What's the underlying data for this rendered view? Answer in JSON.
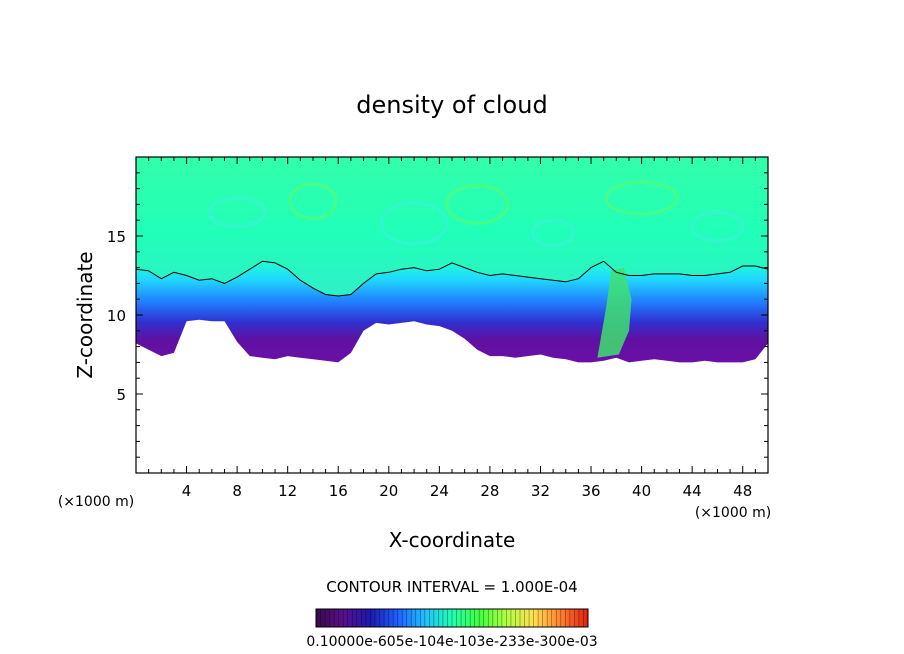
{
  "chart_data": {
    "type": "heatmap",
    "title": "density of cloud",
    "xlabel": "X-coordinate",
    "ylabel": "Z-coordinate",
    "x_unit": "(×1000 m)",
    "xlim": [
      0,
      50
    ],
    "ylim": [
      0,
      20
    ],
    "x_ticks": [
      "4",
      "8",
      "12",
      "16",
      "20",
      "24",
      "28",
      "32",
      "36",
      "40",
      "44",
      "48"
    ],
    "y_ticks": [
      "5",
      "10",
      "15"
    ],
    "contour_interval_text": "CONTOUR INTERVAL = 1.000E-04",
    "colorbar_text": "0.10000e-605e-104e-103e-233e-300e-03",
    "colormap": [
      "#3a0a4a",
      "#5a0f8a",
      "#1a1ab0",
      "#2060ff",
      "#20c0ff",
      "#20ffb0",
      "#40ff40",
      "#b0ff40",
      "#ffe050",
      "#ff8030",
      "#e02010"
    ],
    "cloud_top_contour": [
      [
        0,
        12.9
      ],
      [
        1,
        12.8
      ],
      [
        2,
        12.3
      ],
      [
        3,
        12.7
      ],
      [
        4,
        12.5
      ],
      [
        5,
        12.2
      ],
      [
        6,
        12.3
      ],
      [
        7,
        12.0
      ],
      [
        8,
        12.4
      ],
      [
        9,
        12.9
      ],
      [
        10,
        13.4
      ],
      [
        11,
        13.3
      ],
      [
        12,
        12.9
      ],
      [
        13,
        12.2
      ],
      [
        14,
        11.7
      ],
      [
        15,
        11.3
      ],
      [
        16,
        11.2
      ],
      [
        17,
        11.3
      ],
      [
        18,
        12.0
      ],
      [
        19,
        12.6
      ],
      [
        20,
        12.7
      ],
      [
        21,
        12.9
      ],
      [
        22,
        13.0
      ],
      [
        23,
        12.8
      ],
      [
        24,
        12.9
      ],
      [
        25,
        13.3
      ],
      [
        26,
        13.0
      ],
      [
        27,
        12.7
      ],
      [
        28,
        12.5
      ],
      [
        29,
        12.6
      ],
      [
        30,
        12.5
      ],
      [
        31,
        12.4
      ],
      [
        32,
        12.3
      ],
      [
        33,
        12.2
      ],
      [
        34,
        12.1
      ],
      [
        35,
        12.3
      ],
      [
        36,
        13.0
      ],
      [
        37,
        13.4
      ],
      [
        38,
        12.7
      ],
      [
        39,
        12.5
      ],
      [
        40,
        12.5
      ],
      [
        41,
        12.6
      ],
      [
        42,
        12.6
      ],
      [
        43,
        12.6
      ],
      [
        44,
        12.5
      ],
      [
        45,
        12.5
      ],
      [
        46,
        12.6
      ],
      [
        47,
        12.7
      ],
      [
        48,
        13.1
      ],
      [
        49,
        13.1
      ],
      [
        50,
        12.9
      ]
    ],
    "cloud_base_profile": [
      [
        0,
        8.2
      ],
      [
        1,
        7.8
      ],
      [
        2,
        7.4
      ],
      [
        3,
        7.6
      ],
      [
        4,
        9.6
      ],
      [
        5,
        9.7
      ],
      [
        6,
        9.6
      ],
      [
        7,
        9.6
      ],
      [
        8,
        8.3
      ],
      [
        9,
        7.4
      ],
      [
        10,
        7.3
      ],
      [
        11,
        7.2
      ],
      [
        12,
        7.4
      ],
      [
        13,
        7.3
      ],
      [
        14,
        7.2
      ],
      [
        15,
        7.1
      ],
      [
        16,
        7.0
      ],
      [
        17,
        7.6
      ],
      [
        18,
        9.0
      ],
      [
        19,
        9.5
      ],
      [
        20,
        9.4
      ],
      [
        21,
        9.5
      ],
      [
        22,
        9.6
      ],
      [
        23,
        9.4
      ],
      [
        24,
        9.3
      ],
      [
        25,
        9.0
      ],
      [
        26,
        8.5
      ],
      [
        27,
        7.8
      ],
      [
        28,
        7.4
      ],
      [
        29,
        7.4
      ],
      [
        30,
        7.3
      ],
      [
        31,
        7.4
      ],
      [
        32,
        7.5
      ],
      [
        33,
        7.3
      ],
      [
        34,
        7.2
      ],
      [
        35,
        7.0
      ],
      [
        36,
        7.0
      ],
      [
        37,
        7.1
      ],
      [
        38,
        7.3
      ],
      [
        39,
        7.0
      ],
      [
        40,
        7.1
      ],
      [
        41,
        7.2
      ],
      [
        42,
        7.1
      ],
      [
        43,
        7.0
      ],
      [
        44,
        7.0
      ],
      [
        45,
        7.1
      ],
      [
        46,
        7.0
      ],
      [
        47,
        7.0
      ],
      [
        48,
        7.0
      ],
      [
        49,
        7.2
      ],
      [
        50,
        8.2
      ]
    ]
  }
}
